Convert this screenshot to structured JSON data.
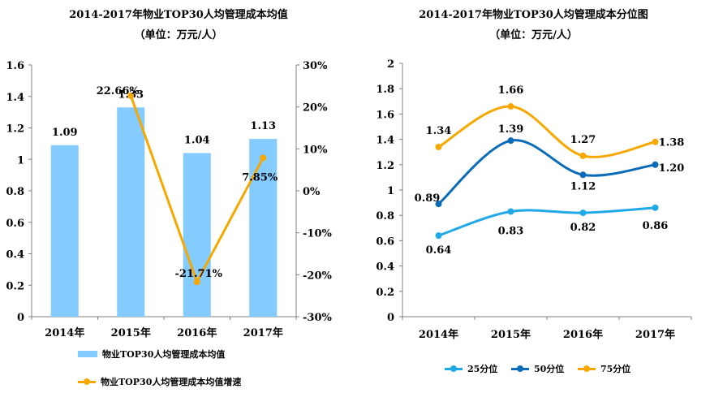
{
  "chart_data": [
    {
      "type": "bar",
      "title": "2014-2017年物业TOP30人均管理成本均值",
      "subtitle": "（单位：万元/人）",
      "categories": [
        "2014年",
        "2015年",
        "2016年",
        "2017年"
      ],
      "y_ticks": [
        "0",
        "0.2",
        "0.4",
        "0.6",
        "0.8",
        "1",
        "1.2",
        "1.4",
        "1.6"
      ],
      "y2_ticks": [
        "-30%",
        "-20%",
        "-10%",
        "0%",
        "10%",
        "20%",
        "30%"
      ],
      "ylim": [
        0,
        1.6
      ],
      "y2lim": [
        -30,
        30
      ],
      "grid": false,
      "legend_position": "bottom",
      "colors": {
        "bar": "#84cbff",
        "line": "#f7a800"
      },
      "series": [
        {
          "name": "物业TOP30人均管理成本均值",
          "kind": "bar",
          "axis": "left",
          "values": [
            1.09,
            1.33,
            1.04,
            1.13
          ],
          "labels": [
            "1.09",
            "1.33",
            "1.04",
            "1.13"
          ]
        },
        {
          "name": "物业TOP30人均管理成本均值增速",
          "kind": "line",
          "axis": "right",
          "values": [
            null,
            22.66,
            -21.71,
            7.85
          ],
          "labels": [
            "",
            "22.66%",
            "-21.71%",
            "7.85%"
          ]
        }
      ]
    },
    {
      "type": "line",
      "title": "2014-2017年物业TOP30人均管理成本分位图",
      "subtitle": "（单位：万元/人）",
      "categories": [
        "2014年",
        "2015年",
        "2016年",
        "2017年"
      ],
      "y_ticks": [
        "0",
        "0.2",
        "0.4",
        "0.6",
        "0.8",
        "1",
        "1.2",
        "1.4",
        "1.6",
        "1.8",
        "2"
      ],
      "ylim": [
        0,
        2
      ],
      "grid": false,
      "legend_position": "bottom",
      "series": [
        {
          "name": "25分位",
          "color": "#1fa9e6",
          "values": [
            0.64,
            0.83,
            0.82,
            0.86
          ],
          "labels": [
            "0.64",
            "0.83",
            "0.82",
            "0.86"
          ]
        },
        {
          "name": "50分位",
          "color": "#0a6bb8",
          "values": [
            0.89,
            1.39,
            1.12,
            1.2
          ],
          "labels": [
            "0.89",
            "1.39",
            "1.12",
            "1.20"
          ]
        },
        {
          "name": "75分位",
          "color": "#f7a800",
          "values": [
            1.34,
            1.66,
            1.27,
            1.38
          ],
          "labels": [
            "1.34",
            "1.66",
            "1.27",
            "1.38"
          ]
        }
      ]
    }
  ]
}
